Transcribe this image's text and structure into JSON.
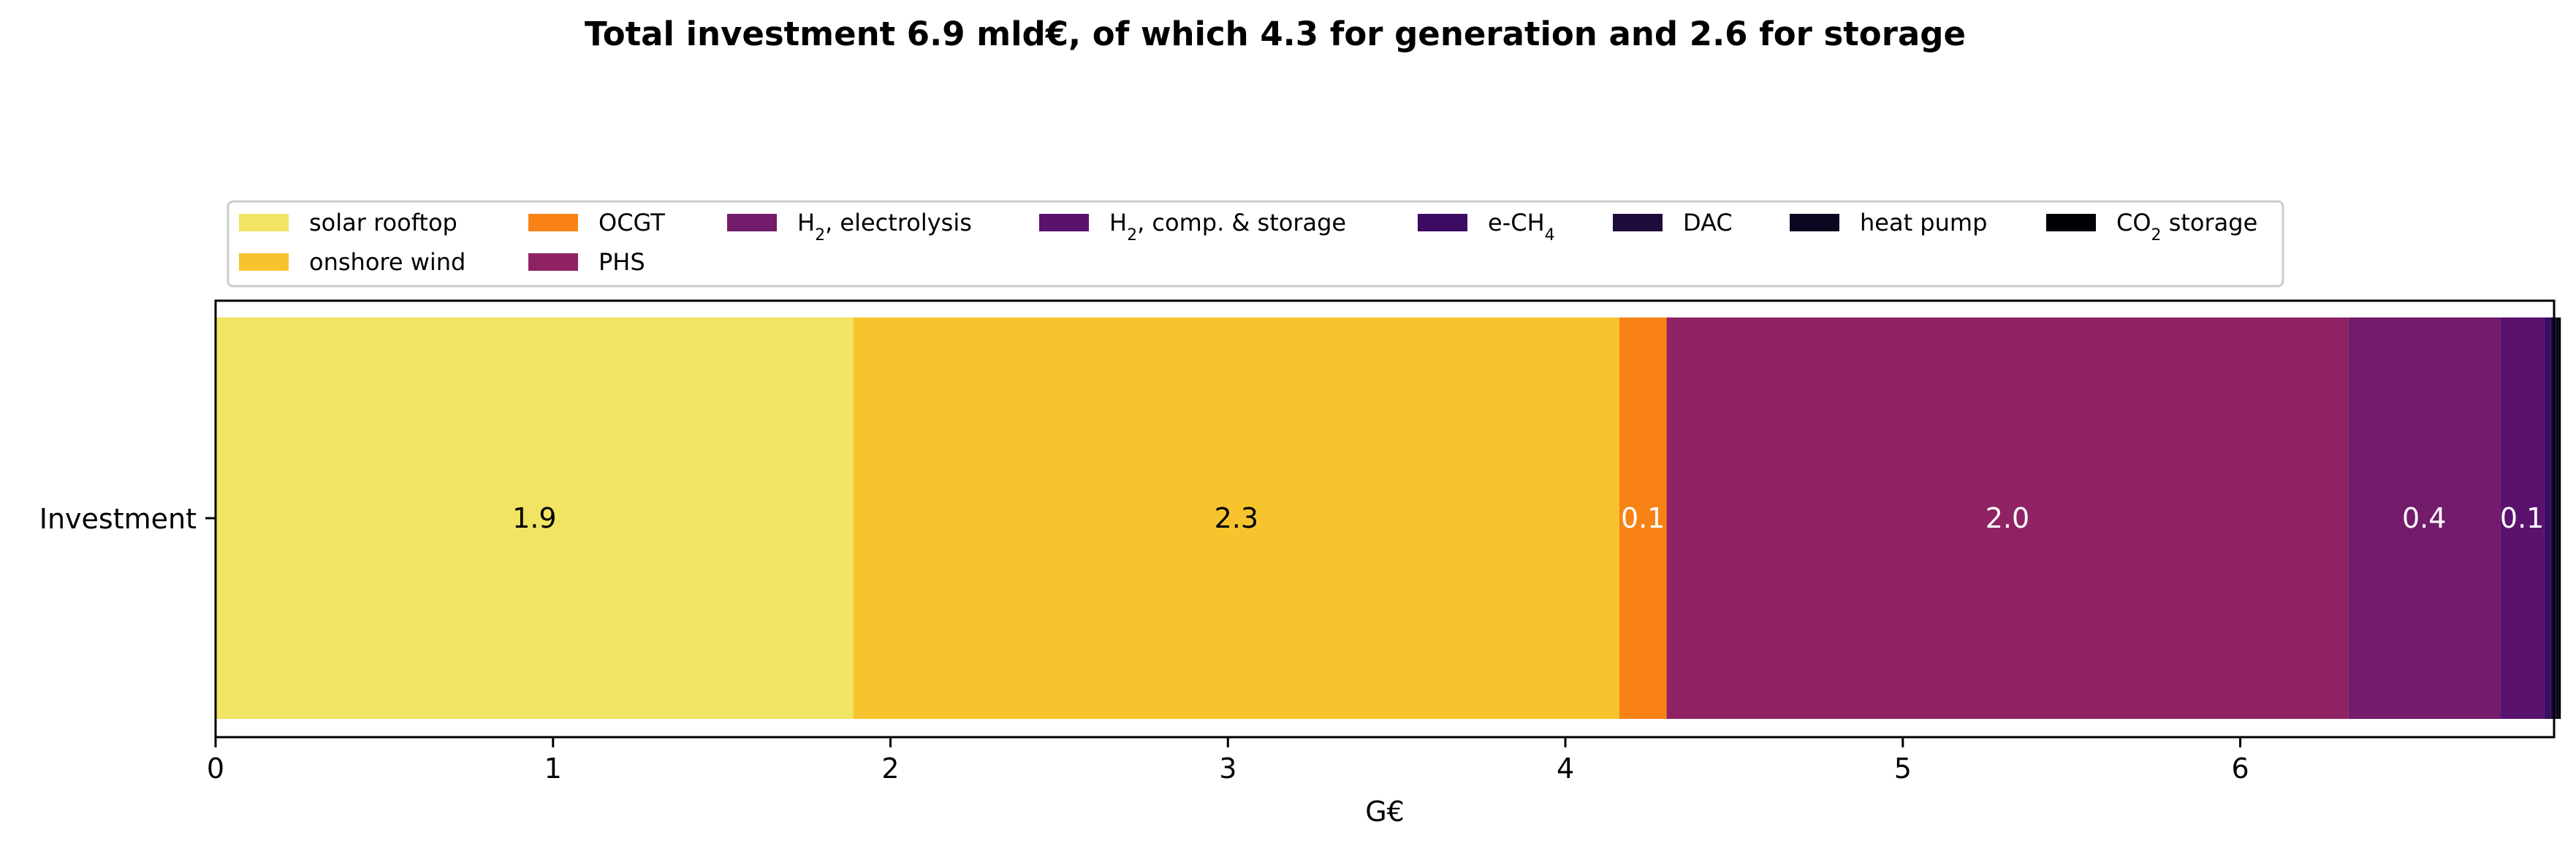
{
  "chart_data": {
    "type": "bar",
    "orientation": "horizontal",
    "stacked": true,
    "title": "Total investment 6.9 mld€, of which 4.3 for generation and 2.6 for storage",
    "xlabel": "G€",
    "ylabel": "",
    "categories": [
      "Investment"
    ],
    "xlim": [
      0,
      6.93
    ],
    "xticks": [
      "0",
      "1",
      "2",
      "3",
      "4",
      "5",
      "6"
    ],
    "grid": false,
    "legend_position": "top",
    "series": [
      {
        "name": "solar rooftop",
        "legend_html": "solar rooftop",
        "value": 1.89,
        "label": "1.9",
        "color": "#f1e462",
        "label_color": "#000000"
      },
      {
        "name": "onshore wind",
        "legend_html": "onshore wind",
        "value": 2.27,
        "label": "2.3",
        "color": "#f8c42e",
        "label_color": "#000000"
      },
      {
        "name": "OCGT",
        "legend_html": "OCGT",
        "value": 0.14,
        "label": "0.1",
        "color": "#f88215",
        "label_color": "#ffffff"
      },
      {
        "name": "PHS",
        "legend_html": "PHS",
        "value": 2.02,
        "label": "2.0",
        "color": "#8f2263",
        "label_color": "#ffffff"
      },
      {
        "name": "H2, electrolysis",
        "legend_html": "H<tspan baseline-shift=\"sub\" font-size=\"22\">2</tspan>, electrolysis",
        "value": 0.45,
        "label": "0.4",
        "color": "#731c6b",
        "label_color": "#ffffff"
      },
      {
        "name": "H2, comp. & storage",
        "legend_html": "H<tspan baseline-shift=\"sub\" font-size=\"22\">2</tspan>, comp. &amp; storage",
        "value": 0.13,
        "label": "0.1",
        "color": "#5a126e",
        "label_color": "#ffffff"
      },
      {
        "name": "e-CH4",
        "legend_html": "e-CH<tspan baseline-shift=\"sub\" font-size=\"22\">4</tspan>",
        "value": 0.02,
        "label": "",
        "color": "#3c0c63",
        "label_color": "#ffffff"
      },
      {
        "name": "DAC",
        "legend_html": "DAC",
        "value": 0.015,
        "label": "",
        "color": "#1d0c3b",
        "label_color": "#ffffff"
      },
      {
        "name": "heat pump",
        "legend_html": "heat pump",
        "value": 0.01,
        "label": "",
        "color": "#0a0720",
        "label_color": "#ffffff"
      },
      {
        "name": "CO2 storage",
        "legend_html": "CO<tspan baseline-shift=\"sub\" font-size=\"22\">2</tspan> storage",
        "value": 0.005,
        "label": "",
        "color": "#000004",
        "label_color": "#ffffff"
      }
    ]
  }
}
